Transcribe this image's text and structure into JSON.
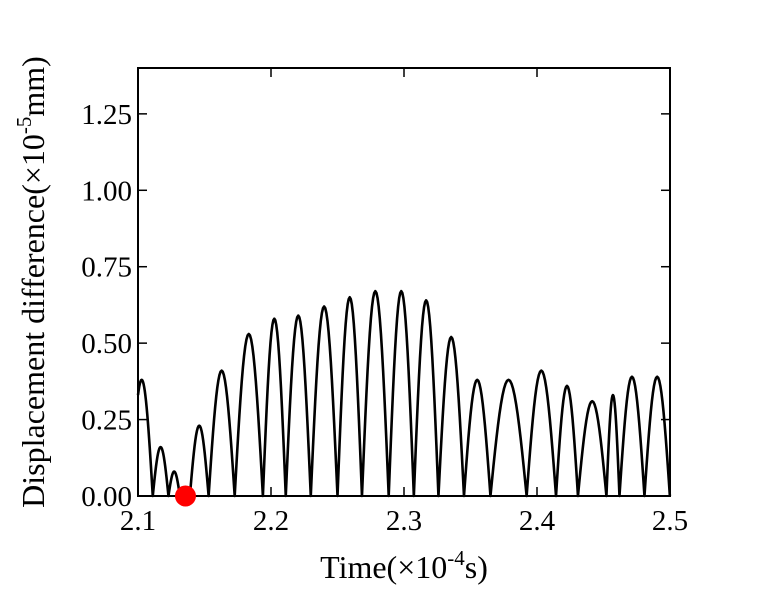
{
  "chart_data": {
    "type": "line",
    "xlabel": "Time(×10",
    "xlabel_exp": "-4",
    "xlabel_tail": "s)",
    "ylabel": "Displacement difference(×10",
    "ylabel_exp": "-5",
    "ylabel_tail": "mm)",
    "xlim": [
      2.1,
      2.5
    ],
    "ylim": [
      0,
      1.4
    ],
    "x_ticks": [
      "2.1",
      "2.2",
      "2.3",
      "2.4",
      "2.5"
    ],
    "y_ticks": [
      "0.00",
      "0.25",
      "0.50",
      "0.75",
      "1.00",
      "1.25"
    ],
    "grid": false,
    "series": [
      {
        "color": "#000000",
        "arches": [
          {
            "x0": 2.1,
            "x1": 2.1111,
            "peak": 0.38,
            "start": 0.33
          },
          {
            "x0": 2.1111,
            "x1": 2.1229,
            "peak": 0.16
          },
          {
            "x0": 2.1229,
            "x1": 2.1315,
            "peak": 0.08
          },
          {
            "x0": 2.1315,
            "x1": 2.1356,
            "peak": 0.02
          },
          {
            "x0": 2.1356,
            "x1": 2.139,
            "peak": 0.01
          },
          {
            "x0": 2.139,
            "x1": 2.1531,
            "peak": 0.23
          },
          {
            "x0": 2.1531,
            "x1": 2.1727,
            "peak": 0.41
          },
          {
            "x0": 2.1727,
            "x1": 2.1939,
            "peak": 0.53
          },
          {
            "x0": 2.1939,
            "x1": 2.2111,
            "peak": 0.58
          },
          {
            "x0": 2.2111,
            "x1": 2.2299,
            "peak": 0.59
          },
          {
            "x0": 2.2299,
            "x1": 2.25,
            "peak": 0.62
          },
          {
            "x0": 2.25,
            "x1": 2.2684,
            "peak": 0.65
          },
          {
            "x0": 2.2684,
            "x1": 2.2885,
            "peak": 0.67
          },
          {
            "x0": 2.2885,
            "x1": 2.3074,
            "peak": 0.67
          },
          {
            "x0": 2.3074,
            "x1": 2.3259,
            "peak": 0.64
          },
          {
            "x0": 2.3259,
            "x1": 2.3451,
            "peak": 0.52
          },
          {
            "x0": 2.3451,
            "x1": 2.365,
            "peak": 0.38
          },
          {
            "x0": 2.365,
            "x1": 2.3922,
            "peak": 0.38
          },
          {
            "x0": 2.3922,
            "x1": 2.4143,
            "peak": 0.41
          },
          {
            "x0": 2.4143,
            "x1": 2.4308,
            "peak": 0.36
          },
          {
            "x0": 2.4308,
            "x1": 2.4522,
            "peak": 0.31
          },
          {
            "x0": 2.4522,
            "x1": 2.462,
            "peak": 0.33
          },
          {
            "x0": 2.462,
            "x1": 2.4808,
            "peak": 0.39
          },
          {
            "x0": 2.4808,
            "x1": 2.4999,
            "peak": 0.39
          }
        ]
      }
    ],
    "marker": {
      "x": 2.1357,
      "y": 0.0,
      "color": "#ff0000"
    }
  }
}
